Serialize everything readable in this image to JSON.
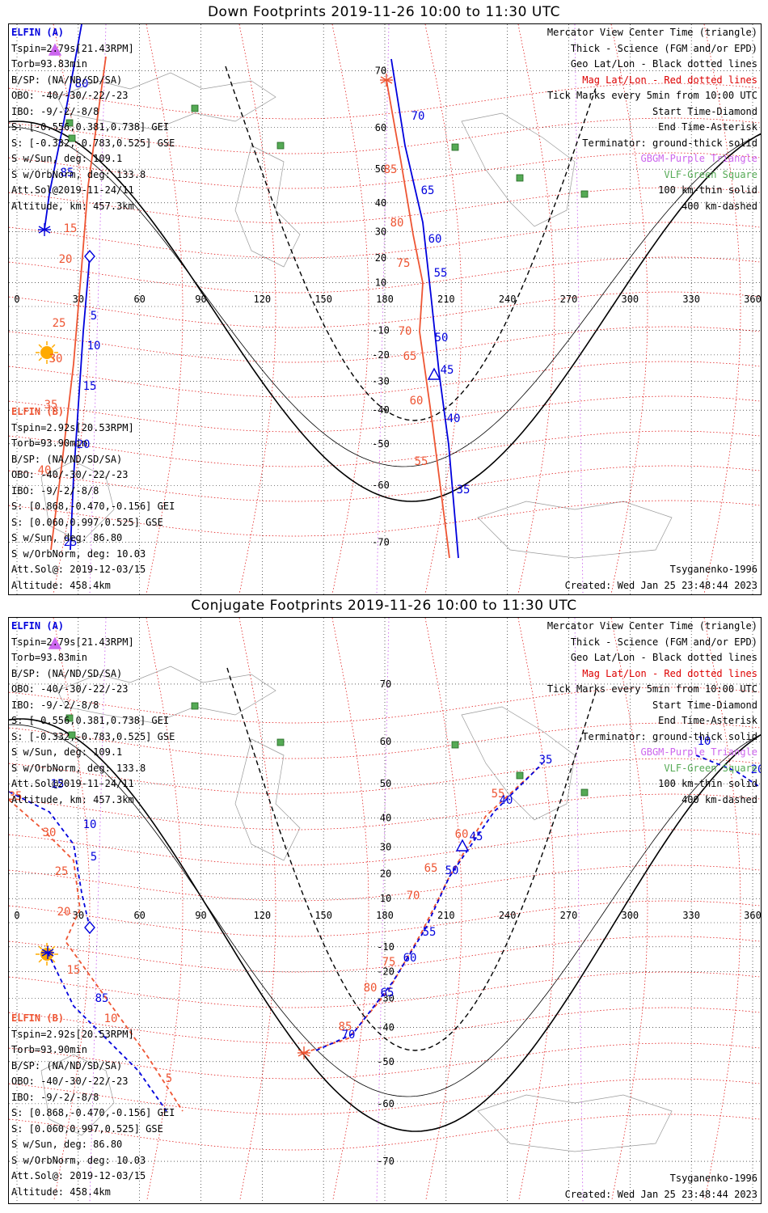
{
  "colors": {
    "elfin_a": "#0000dd",
    "elfin_b": "#ee5533",
    "geo_grid": "#000000",
    "mag_grid": "#dd0000",
    "gbgm": "#cc66ee",
    "vlf": "#55aa55",
    "sun": "#ffaa00",
    "coast": "#999999"
  },
  "icons": [
    "diamond-icon",
    "asterisk-icon",
    "triangle-icon",
    "square-icon",
    "sun-icon"
  ],
  "lon_ticks": [
    "0",
    "30",
    "60",
    "90",
    "120",
    "150",
    "180",
    "210",
    "240",
    "270",
    "300",
    "330",
    "360"
  ],
  "lat_ticks": [
    "70",
    "60",
    "50",
    "40",
    "30",
    "20",
    "10",
    "-10",
    "-20",
    "-30",
    "-40",
    "-50",
    "-60",
    "-70"
  ],
  "elfin_a": {
    "name": "ELFIN (A)",
    "tspin": "Tspin=2.79s[21.43RPM]",
    "torb": "Torb=93.83min",
    "bsp": "B/SP: (NA/ND/SD/SA)",
    "obo": "OBO: -40/-30/-22/-23",
    "ibo": "IBO: -9/-2/-8/8",
    "s_gei": "S: [-0.556,0.381,0.738] GEI",
    "s_gse": "S: [-0.332,-0.783,0.525] GSE",
    "s_sun": "S w/Sun, deg: 109.1",
    "s_orb": "S w/OrbNorm, deg: 133.8",
    "att": "Att.Sol@2019-11-24/11",
    "alt": "Altitude, km: 457.3km"
  },
  "elfin_b": {
    "name": "ELFIN (B)",
    "tspin": "Tspin=2.92s[20.53RPM]",
    "torb": "Torb=93.90min",
    "bsp": "B/SP: (NA/ND/SD/SA)",
    "obo": "OBO: -40/-30/-22/-23",
    "ibo": "IBO: -9/-2/-8/8",
    "s_gei": "S: [0.868,-0.470,-0.156] GEI",
    "s_gse": "S: [0.060,0.997,0.525] GSE",
    "s_sun": "S w/Sun, deg: 86.80",
    "s_orb": "S w/OrbNorm, deg: 10.03",
    "att": "Att.Sol@: 2019-12-03/15",
    "alt": "Altitude: 458.4km"
  },
  "legend": {
    "l1": "Mercator View Center Time (triangle)",
    "l2": "Thick - Science (FGM and/or EPD)",
    "l3": "Geo Lat/Lon - Black dotted lines",
    "l4": "Mag Lat/Lon - Red dotted lines",
    "l5": "Tick Marks every 5min from 10:00 UTC",
    "l6": "Start Time-Diamond",
    "l7": "End Time-Asterisk",
    "l8": "Terminator: ground-thick solid",
    "l9": "GBGM-Purple Triangle",
    "l10": "VLF-Green Square",
    "l11": "100 km-thin solid",
    "l12": "400 km-dashed"
  },
  "footer": {
    "model": "Tsyganenko-1996",
    "created": "Created: Wed Jan 25 23:48:44 2023"
  },
  "panels": [
    {
      "title": "Down Footprints 2019-11-26 10:00 to 11:30 UTC",
      "tracks": {
        "a_left": {
          "labels": [
            "80",
            "85",
            "5",
            "10",
            "15",
            "20",
            "25"
          ]
        },
        "b_left": {
          "labels": [
            "15",
            "20",
            "25",
            "30",
            "35",
            "40"
          ]
        },
        "a_mid": {
          "labels": [
            "70",
            "65",
            "60",
            "55",
            "50",
            "45",
            "40",
            "35"
          ]
        },
        "b_mid": {
          "labels": [
            "85",
            "80",
            "75",
            "70",
            "65",
            "60",
            "55"
          ]
        }
      }
    },
    {
      "title": "Conjugate Footprints 2019-11-26 10:00 to 11:30 UTC",
      "tracks": {
        "a_left": {
          "labels": [
            "15",
            "10",
            "5",
            "85"
          ]
        },
        "b_left": {
          "labels": [
            "35",
            "30",
            "25",
            "20",
            "15",
            "10",
            "5"
          ]
        },
        "a_mid": {
          "labels": [
            "35",
            "40",
            "45",
            "50",
            "55",
            "60",
            "65",
            "70"
          ]
        },
        "b_mid": {
          "labels": [
            "55",
            "60",
            "65",
            "70",
            "75",
            "80",
            "85"
          ]
        },
        "edge": {
          "labels": [
            "20",
            "10"
          ]
        }
      }
    }
  ]
}
